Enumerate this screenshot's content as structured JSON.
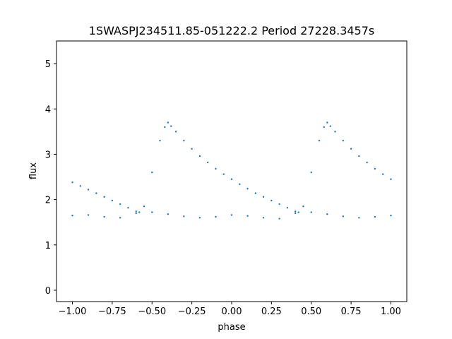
{
  "chart_data": {
    "type": "scatter",
    "title": "1SWASPJ234511.85-051222.2 Period 27228.3457s",
    "xlabel": "phase",
    "ylabel": "flux",
    "xlim": [
      -1.1,
      1.1
    ],
    "ylim": [
      -0.25,
      5.5
    ],
    "x_ticks": [
      -1.0,
      -0.75,
      -0.5,
      -0.25,
      0.0,
      0.25,
      0.5,
      0.75,
      1.0
    ],
    "x_tick_labels": [
      "−1.00",
      "−0.75",
      "−0.50",
      "−0.25",
      "0.00",
      "0.25",
      "0.50",
      "0.75",
      "1.00"
    ],
    "y_ticks": [
      0,
      1,
      2,
      3,
      4,
      5
    ],
    "y_tick_labels": [
      "0",
      "1",
      "2",
      "3",
      "4",
      "5"
    ],
    "grid": false,
    "point_color": "#1f77b4",
    "series": [
      {
        "x": [
          -1.0,
          -0.95,
          -0.9,
          -0.85,
          -0.8,
          -0.75,
          -0.7,
          -0.65,
          -0.6,
          -0.58,
          -0.55,
          -0.5,
          -0.45,
          -0.42,
          -0.4,
          -0.38,
          -0.35,
          -0.3,
          -0.25,
          -0.2,
          -0.15,
          -0.1,
          -0.05,
          0.0,
          0.05,
          0.1,
          0.15,
          0.2,
          0.25,
          0.3,
          0.35,
          0.4,
          0.42,
          0.45,
          0.5,
          0.55,
          0.58,
          0.6,
          0.62,
          0.65,
          0.7,
          0.75,
          0.8,
          0.85,
          0.9,
          0.95,
          1.0
        ],
        "y": [
          2.38,
          2.3,
          2.22,
          2.14,
          2.06,
          1.98,
          1.9,
          1.82,
          1.74,
          1.72,
          1.85,
          2.6,
          3.3,
          3.6,
          3.7,
          3.62,
          3.5,
          3.3,
          3.12,
          2.96,
          2.82,
          2.68,
          2.56,
          2.45,
          2.34,
          2.24,
          2.14,
          2.06,
          1.98,
          1.9,
          1.82,
          1.74,
          1.72,
          1.85,
          2.6,
          3.3,
          3.6,
          3.7,
          3.62,
          3.5,
          3.3,
          3.12,
          2.96,
          2.82,
          2.68,
          2.56,
          2.45
        ]
      },
      {
        "x": [
          -1.0,
          -0.9,
          -0.8,
          -0.7,
          -0.6,
          -0.5,
          -0.4,
          -0.3,
          -0.2,
          -0.1,
          0.0,
          0.1,
          0.2,
          0.3,
          0.4,
          0.5,
          0.6,
          0.7,
          0.8,
          0.9,
          1.0
        ],
        "y": [
          1.65,
          1.66,
          1.62,
          1.6,
          1.7,
          1.72,
          1.68,
          1.63,
          1.6,
          1.62,
          1.66,
          1.64,
          1.6,
          1.58,
          1.7,
          1.72,
          1.68,
          1.63,
          1.6,
          1.62,
          1.65
        ]
      }
    ]
  }
}
